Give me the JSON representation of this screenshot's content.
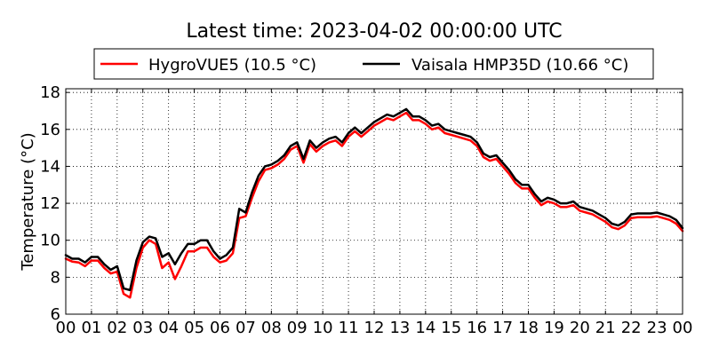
{
  "chart_data": {
    "type": "line",
    "title": "Latest time: 2023-04-02 00:00:00 UTC",
    "xlabel": "",
    "ylabel": "Temperature (°C)",
    "ylim": [
      6,
      18.2
    ],
    "xlim": [
      0,
      24
    ],
    "grid": true,
    "legend_placement": "top-center",
    "x_tick_labels": [
      "00",
      "01",
      "02",
      "03",
      "04",
      "05",
      "06",
      "07",
      "08",
      "09",
      "10",
      "11",
      "12",
      "13",
      "14",
      "15",
      "16",
      "17",
      "18",
      "19",
      "20",
      "21",
      "22",
      "23",
      "00"
    ],
    "y_ticks": [
      6,
      8,
      10,
      12,
      14,
      16,
      18
    ],
    "series": [
      {
        "name": "HygroVUE5 (10.5 °C)",
        "color": "#ff0000",
        "x": [
          0,
          0.25,
          0.5,
          0.75,
          1,
          1.25,
          1.5,
          1.75,
          2,
          2.25,
          2.5,
          2.75,
          3,
          3.25,
          3.5,
          3.75,
          4,
          4.25,
          4.5,
          4.75,
          5,
          5.25,
          5.5,
          5.75,
          6,
          6.25,
          6.5,
          6.75,
          7,
          7.25,
          7.5,
          7.75,
          8,
          8.25,
          8.5,
          8.75,
          9,
          9.25,
          9.5,
          9.75,
          10,
          10.25,
          10.5,
          10.75,
          11,
          11.25,
          11.5,
          11.75,
          12,
          12.25,
          12.5,
          12.75,
          13,
          13.25,
          13.5,
          13.75,
          14,
          14.25,
          14.5,
          14.75,
          15,
          15.25,
          15.5,
          15.75,
          16,
          16.25,
          16.5,
          16.75,
          17,
          17.25,
          17.5,
          17.75,
          18,
          18.25,
          18.5,
          18.75,
          19,
          19.25,
          19.5,
          19.75,
          20,
          20.25,
          20.5,
          20.75,
          21,
          21.25,
          21.5,
          21.75,
          22,
          22.25,
          22.5,
          22.75,
          23,
          23.25,
          23.5,
          23.75,
          24
        ],
        "values": [
          9.0,
          8.85,
          8.8,
          8.6,
          8.9,
          8.9,
          8.5,
          8.2,
          8.3,
          7.1,
          6.9,
          8.5,
          9.6,
          10.0,
          9.8,
          8.5,
          8.8,
          7.9,
          8.6,
          9.4,
          9.4,
          9.6,
          9.6,
          9.1,
          8.8,
          8.9,
          9.3,
          11.2,
          11.3,
          12.3,
          13.2,
          13.8,
          13.9,
          14.1,
          14.4,
          14.9,
          15.1,
          14.2,
          15.2,
          14.8,
          15.1,
          15.3,
          15.4,
          15.1,
          15.6,
          15.9,
          15.6,
          15.9,
          16.2,
          16.4,
          16.6,
          16.5,
          16.7,
          16.9,
          16.5,
          16.5,
          16.3,
          16.0,
          16.1,
          15.8,
          15.7,
          15.6,
          15.5,
          15.4,
          15.1,
          14.5,
          14.3,
          14.4,
          14.0,
          13.6,
          13.1,
          12.8,
          12.8,
          12.3,
          11.9,
          12.1,
          12.0,
          11.8,
          11.8,
          11.9,
          11.6,
          11.5,
          11.4,
          11.2,
          11.0,
          10.7,
          10.6,
          10.8,
          11.2,
          11.25,
          11.25,
          11.25,
          11.3,
          11.2,
          11.1,
          10.9,
          10.5
        ]
      },
      {
        "name": "Vaisala HMP35D (10.66 °C)",
        "color": "#000000",
        "x": [
          0,
          0.25,
          0.5,
          0.75,
          1,
          1.25,
          1.5,
          1.75,
          2,
          2.25,
          2.5,
          2.75,
          3,
          3.25,
          3.5,
          3.75,
          4,
          4.25,
          4.5,
          4.75,
          5,
          5.25,
          5.5,
          5.75,
          6,
          6.25,
          6.5,
          6.75,
          7,
          7.25,
          7.5,
          7.75,
          8,
          8.25,
          8.5,
          8.75,
          9,
          9.25,
          9.5,
          9.75,
          10,
          10.25,
          10.5,
          10.75,
          11,
          11.25,
          11.5,
          11.75,
          12,
          12.25,
          12.5,
          12.75,
          13,
          13.25,
          13.5,
          13.75,
          14,
          14.25,
          14.5,
          14.75,
          15,
          15.25,
          15.5,
          15.75,
          16,
          16.25,
          16.5,
          16.75,
          17,
          17.25,
          17.5,
          17.75,
          18,
          18.25,
          18.5,
          18.75,
          19,
          19.25,
          19.5,
          19.75,
          20,
          20.25,
          20.5,
          20.75,
          21,
          21.25,
          21.5,
          21.75,
          22,
          22.25,
          22.5,
          22.75,
          23,
          23.25,
          23.5,
          23.75,
          24
        ],
        "values": [
          9.2,
          9.0,
          9.0,
          8.8,
          9.1,
          9.1,
          8.7,
          8.4,
          8.6,
          7.4,
          7.3,
          8.9,
          9.9,
          10.2,
          10.1,
          9.1,
          9.3,
          8.7,
          9.3,
          9.8,
          9.8,
          10.0,
          10.0,
          9.4,
          9.0,
          9.2,
          9.6,
          11.7,
          11.5,
          12.6,
          13.5,
          14.0,
          14.1,
          14.3,
          14.6,
          15.1,
          15.3,
          14.4,
          15.4,
          15.0,
          15.3,
          15.5,
          15.6,
          15.3,
          15.8,
          16.1,
          15.8,
          16.1,
          16.4,
          16.6,
          16.8,
          16.7,
          16.9,
          17.1,
          16.7,
          16.7,
          16.5,
          16.2,
          16.3,
          16.0,
          15.9,
          15.8,
          15.7,
          15.6,
          15.3,
          14.7,
          14.5,
          14.6,
          14.2,
          13.8,
          13.3,
          13.0,
          13.0,
          12.5,
          12.1,
          12.3,
          12.2,
          12.0,
          12.0,
          12.1,
          11.8,
          11.7,
          11.6,
          11.4,
          11.2,
          10.9,
          10.8,
          11.0,
          11.4,
          11.45,
          11.45,
          11.45,
          11.5,
          11.4,
          11.3,
          11.1,
          10.66
        ]
      }
    ]
  }
}
